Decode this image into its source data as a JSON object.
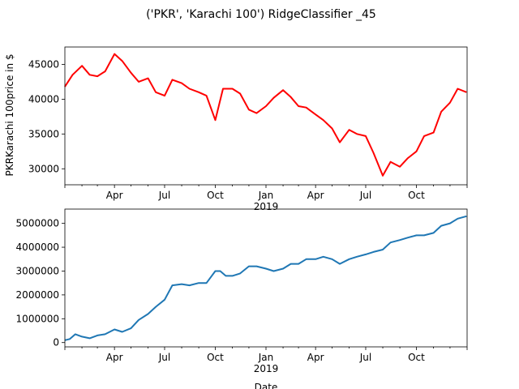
{
  "chart_data": [
    {
      "type": "line",
      "title": "('PKR', 'Karachi 100') RidgeClassifier _45",
      "ylabel": "PKRKarachi 100price in $",
      "xlabel": "",
      "x_tick_labels": [
        "Apr",
        "Jul",
        "Oct",
        "Jan",
        "Apr",
        "Jul",
        "Oct"
      ],
      "x_year_label": "2019",
      "y_ticks": [
        30000,
        35000,
        40000,
        45000
      ],
      "y_tick_labels": [
        "30000",
        "35000",
        "40000",
        "45000"
      ],
      "ylim": [
        27700,
        47500
      ],
      "xlim": [
        "2018-01-01",
        "2020-01-01"
      ],
      "color": "#ff0000",
      "series": [
        {
          "x": [
            "2018-01-01",
            "2018-01-15",
            "2018-02-01",
            "2018-02-15",
            "2018-03-01",
            "2018-03-15",
            "2018-04-01",
            "2018-04-15",
            "2018-05-01",
            "2018-05-15",
            "2018-06-01",
            "2018-06-15",
            "2018-07-01",
            "2018-07-15",
            "2018-08-01",
            "2018-08-15",
            "2018-09-01",
            "2018-09-15",
            "2018-10-01",
            "2018-10-15",
            "2018-11-01",
            "2018-11-15",
            "2018-12-01",
            "2018-12-15",
            "2019-01-01",
            "2019-01-15",
            "2019-02-01",
            "2019-02-15",
            "2019-03-01",
            "2019-03-15",
            "2019-04-01",
            "2019-04-15",
            "2019-05-01",
            "2019-05-15",
            "2019-06-01",
            "2019-06-15",
            "2019-07-01",
            "2019-07-15",
            "2019-08-01",
            "2019-08-15",
            "2019-09-01",
            "2019-09-15",
            "2019-10-01",
            "2019-10-15",
            "2019-11-01",
            "2019-11-15",
            "2019-12-01",
            "2019-12-15",
            "2019-12-31"
          ],
          "values": [
            41800,
            43500,
            44800,
            43500,
            43300,
            44000,
            46500,
            45500,
            43800,
            42500,
            43000,
            41000,
            40500,
            42800,
            42300,
            41500,
            41000,
            40500,
            37000,
            41500,
            41500,
            40800,
            38500,
            38000,
            39000,
            40200,
            41300,
            40300,
            39000,
            38800,
            37800,
            37000,
            35800,
            33800,
            35600,
            35000,
            34700,
            32300,
            29000,
            31000,
            30300,
            31500,
            32500,
            34700,
            35200,
            38200,
            39500,
            41500,
            41000
          ]
        }
      ]
    },
    {
      "type": "line",
      "title": "",
      "ylabel": "",
      "xlabel": "Date",
      "x_tick_labels": [
        "Apr",
        "Jul",
        "Oct",
        "Jan",
        "Apr",
        "Jul",
        "Oct"
      ],
      "x_year_label": "2019",
      "y_ticks": [
        0,
        1000000,
        2000000,
        3000000,
        4000000,
        5000000
      ],
      "y_tick_labels": [
        "0",
        "1000000",
        "2000000",
        "3000000",
        "4000000",
        "5000000"
      ],
      "ylim": [
        -180000,
        5600000
      ],
      "xlim": [
        "2018-01-01",
        "2020-01-01"
      ],
      "color": "#1f77b4",
      "series": [
        {
          "x": [
            "2018-01-01",
            "2018-01-10",
            "2018-01-20",
            "2018-02-01",
            "2018-02-15",
            "2018-03-01",
            "2018-03-15",
            "2018-04-01",
            "2018-04-15",
            "2018-05-01",
            "2018-05-15",
            "2018-06-01",
            "2018-06-15",
            "2018-07-01",
            "2018-07-15",
            "2018-08-01",
            "2018-08-15",
            "2018-09-01",
            "2018-09-15",
            "2018-10-01",
            "2018-10-10",
            "2018-10-20",
            "2018-11-01",
            "2018-11-15",
            "2018-12-01",
            "2018-12-15",
            "2019-01-01",
            "2019-01-15",
            "2019-02-01",
            "2019-02-15",
            "2019-03-01",
            "2019-03-15",
            "2019-04-01",
            "2019-04-15",
            "2019-05-01",
            "2019-05-15",
            "2019-06-01",
            "2019-06-15",
            "2019-07-01",
            "2019-07-15",
            "2019-08-01",
            "2019-08-15",
            "2019-09-01",
            "2019-09-15",
            "2019-10-01",
            "2019-10-15",
            "2019-11-01",
            "2019-11-15",
            "2019-12-01",
            "2019-12-15",
            "2019-12-31"
          ],
          "values": [
            100000,
            150000,
            350000,
            250000,
            180000,
            300000,
            350000,
            550000,
            450000,
            600000,
            950000,
            1200000,
            1500000,
            1800000,
            2400000,
            2450000,
            2400000,
            2500000,
            2500000,
            3000000,
            3000000,
            2800000,
            2800000,
            2900000,
            3200000,
            3200000,
            3100000,
            3000000,
            3100000,
            3300000,
            3300000,
            3500000,
            3500000,
            3600000,
            3500000,
            3300000,
            3500000,
            3600000,
            3700000,
            3800000,
            3900000,
            4200000,
            4300000,
            4400000,
            4500000,
            4500000,
            4600000,
            4900000,
            5000000,
            5200000,
            5300000
          ]
        }
      ]
    }
  ]
}
